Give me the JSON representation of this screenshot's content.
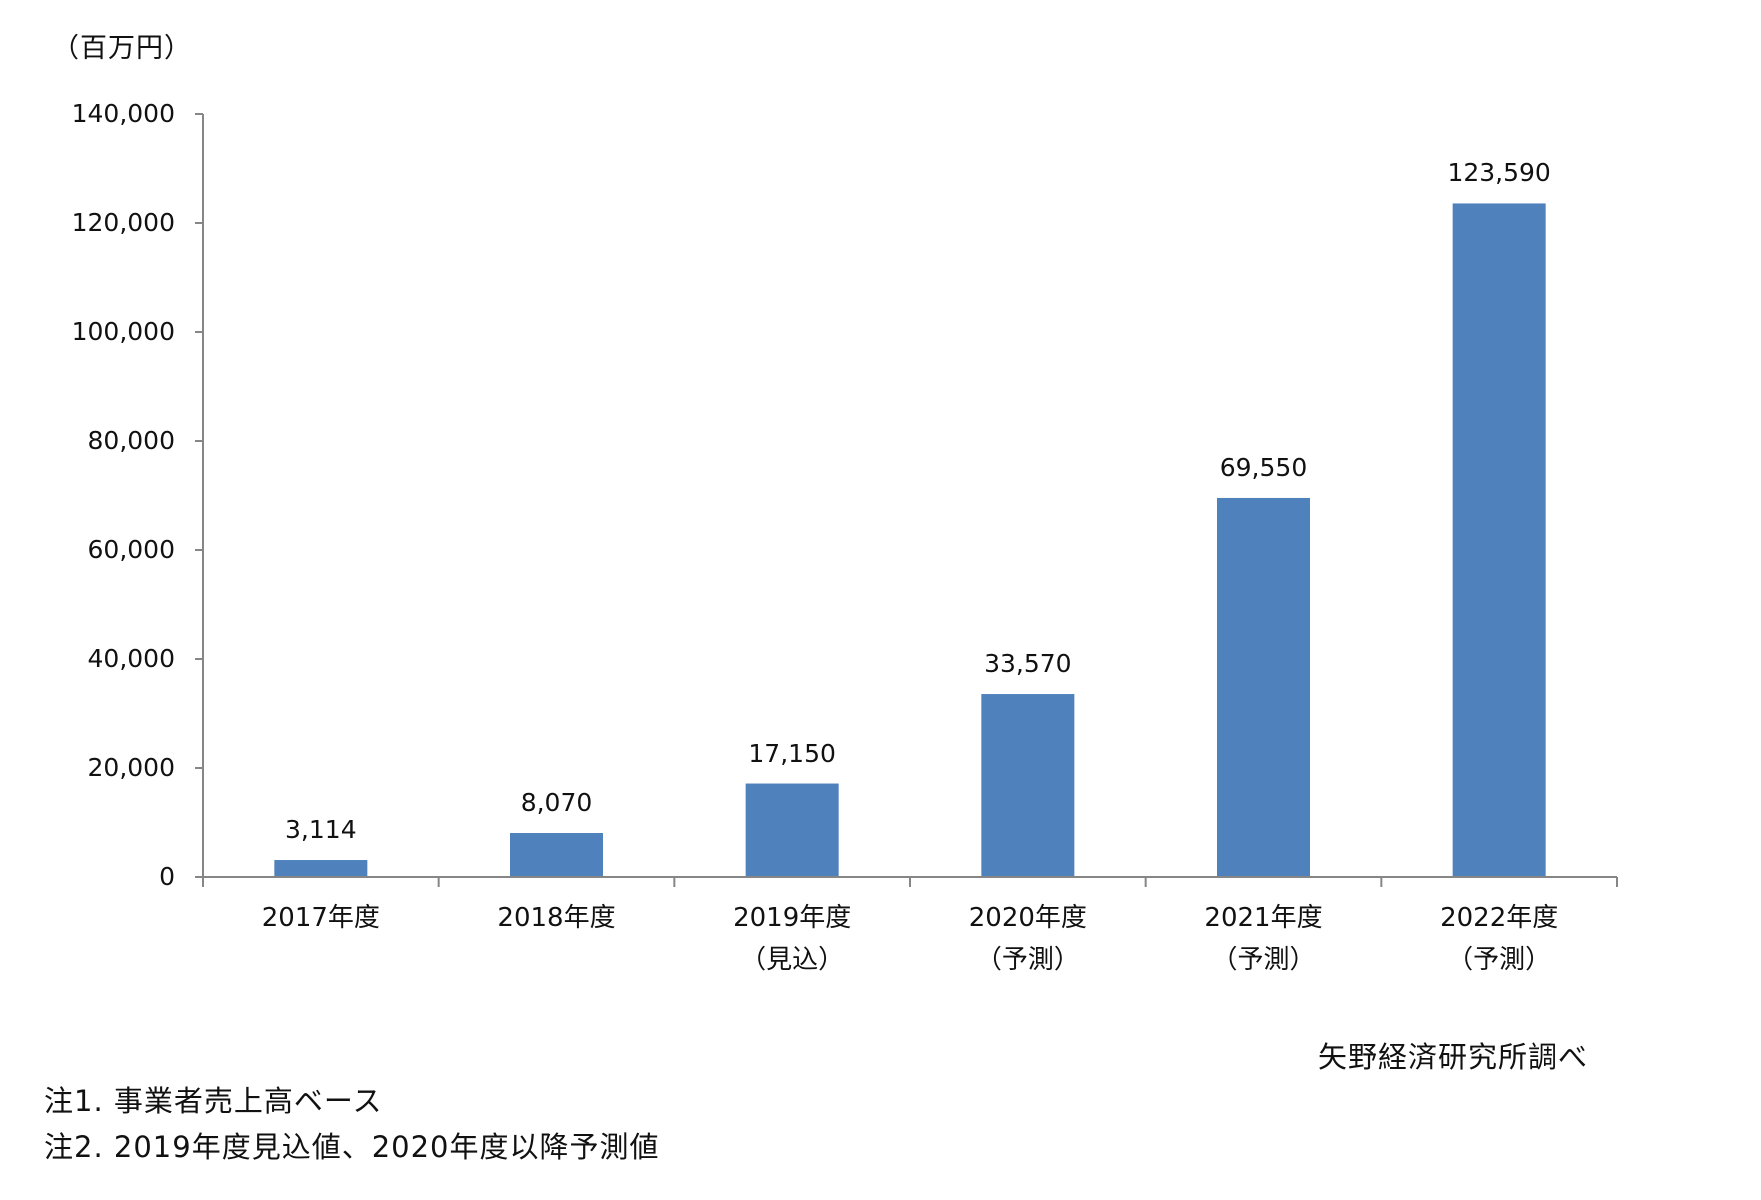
{
  "unit_label": "（百万円）",
  "source_note": "矢野経済研究所調べ",
  "footnotes": [
    "注1. 事業者売上高ベース",
    "注2. 2019年度見込値、2020年度以降予測値"
  ],
  "colors": {
    "bar": "#4F81BD",
    "axis": "#868686",
    "text": "#111111"
  },
  "chart_data": {
    "type": "bar",
    "title": "",
    "xlabel": "",
    "ylabel": "（百万円）",
    "ylim": [
      0,
      140000
    ],
    "yticks": [
      0,
      20000,
      40000,
      60000,
      80000,
      100000,
      120000,
      140000
    ],
    "ytick_labels": [
      "0",
      "20,000",
      "40,000",
      "60,000",
      "80,000",
      "100,000",
      "120,000",
      "140,000"
    ],
    "grid": false,
    "legend": null,
    "categories": [
      "2017年度",
      "2018年度",
      "2019年度\n（見込）",
      "2020年度\n（予測）",
      "2021年度\n（予測）",
      "2022年度\n（予測）"
    ],
    "values": [
      3114,
      8070,
      17150,
      33570,
      69550,
      123590
    ],
    "data_labels": [
      "3,114",
      "8,070",
      "17,150",
      "33,570",
      "69,550",
      "123,590"
    ],
    "annotations": [
      "矢野経済研究所調べ",
      "注1. 事業者売上高ベース",
      "注2. 2019年度見込値、2020年度以降予測値"
    ]
  }
}
